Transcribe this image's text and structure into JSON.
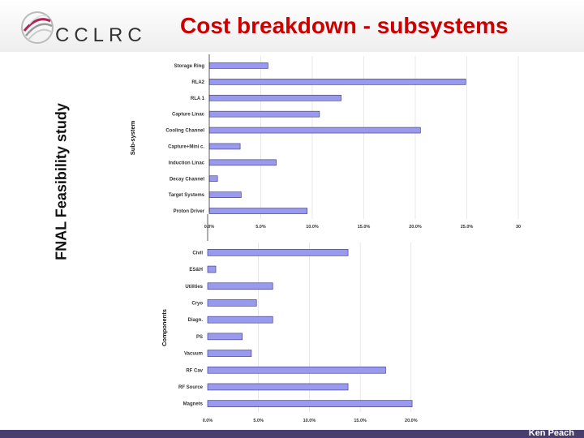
{
  "header": {
    "title": "Cost breakdown - subsystems",
    "logo_text": "CCLRC"
  },
  "side_label": "FNAL Feasibility study",
  "footer": "Ken Peach",
  "colors": {
    "bar": "#9999f0",
    "bar_stroke": "#33337a",
    "title": "#cc0000",
    "footer_bar": "#4a3e6e"
  },
  "chart_data": [
    {
      "type": "bar",
      "orientation": "horizontal",
      "ylabel": "Sub-system",
      "categories": [
        "Storage Ring",
        "RLA2",
        "RLA 1",
        "Capture Linac",
        "Cooling Channel",
        "Capture+Mini c.",
        "Induction Linac",
        "Decay Channel",
        "Target Systems",
        "Proton Driver"
      ],
      "values": [
        5.7,
        24.9,
        12.8,
        10.7,
        20.5,
        3.0,
        6.5,
        0.8,
        3.1,
        9.5
      ],
      "xticks": [
        "0.0%",
        "5.0%",
        "10.0%",
        "15.0%",
        "20.0%",
        "25.0%",
        "30"
      ],
      "xlim": [
        0,
        30
      ],
      "unit": "%"
    },
    {
      "type": "bar",
      "orientation": "horizontal",
      "ylabel": "Components",
      "categories": [
        "Civil",
        "ES&H",
        "Utilities",
        "Cryo",
        "Diagn.",
        "PS",
        "Vacuum",
        "RF Cav",
        "RF Source",
        "Magnets"
      ],
      "values": [
        13.8,
        0.8,
        6.4,
        4.8,
        6.4,
        3.4,
        4.3,
        17.5,
        13.8,
        20.1
      ],
      "xticks": [
        "0.0%",
        "5.0%",
        "10.0%",
        "15.0%",
        "20.0%"
      ],
      "xlim": [
        0,
        24
      ],
      "unit": "%"
    }
  ]
}
